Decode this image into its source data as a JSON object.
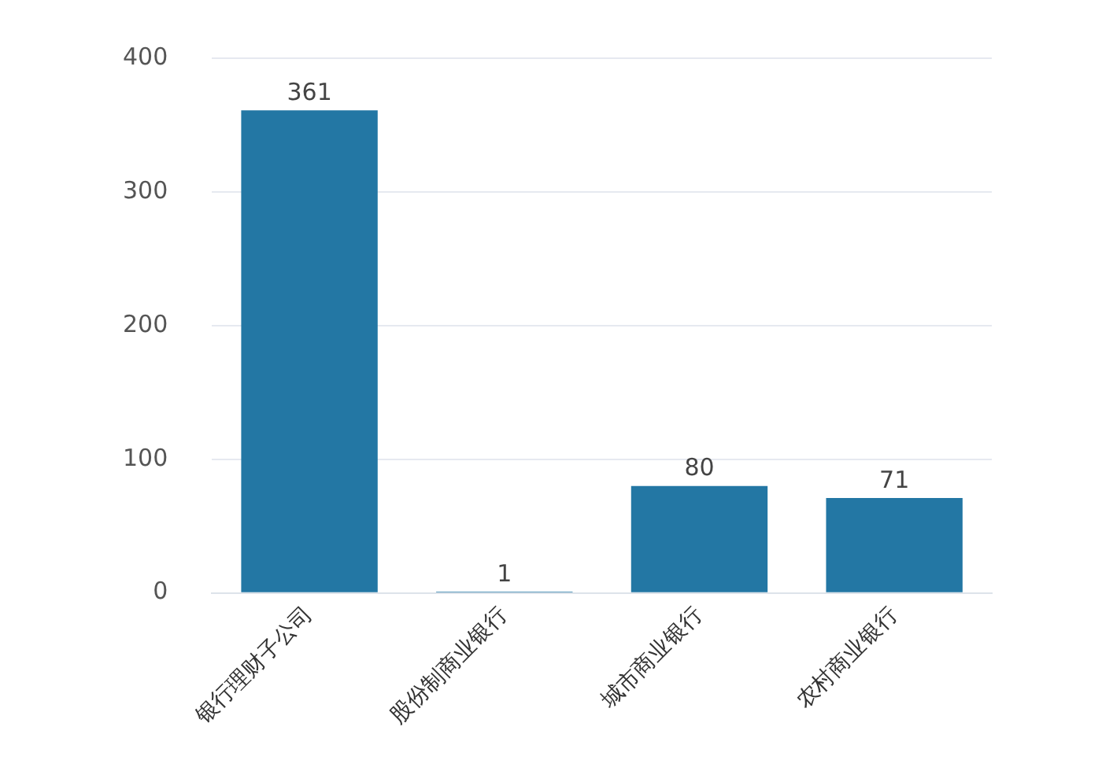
{
  "chart_data": {
    "type": "bar",
    "categories": [
      "银行理财子公司",
      "股份制商业银行",
      "城市商业银行",
      "农村商业银行"
    ],
    "values": [
      361,
      1,
      80,
      71
    ],
    "color": "#2377a4",
    "ylim": [
      0,
      400
    ],
    "yticks": [
      0,
      100,
      200,
      300,
      400
    ],
    "grid": "y",
    "data_labels": true
  }
}
